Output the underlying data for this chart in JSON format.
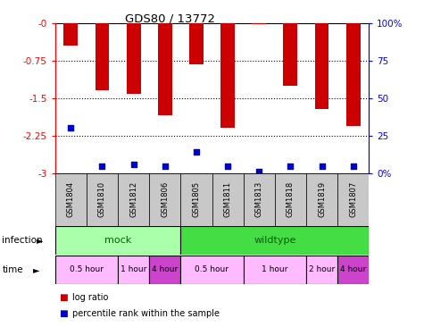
{
  "title": "GDS80 / 13772",
  "samples": [
    "GSM1804",
    "GSM1810",
    "GSM1812",
    "GSM1806",
    "GSM1805",
    "GSM1811",
    "GSM1813",
    "GSM1818",
    "GSM1819",
    "GSM1807"
  ],
  "log_ratios": [
    -0.45,
    -1.35,
    -1.42,
    -1.85,
    -0.82,
    -2.1,
    -0.02,
    -1.25,
    -1.72,
    -2.05
  ],
  "percentile_ranks": [
    30,
    5,
    6,
    5,
    14,
    5,
    1,
    5,
    5,
    5
  ],
  "ylim_min": -3.0,
  "ylim_max": 0.0,
  "yticks": [
    0.0,
    -0.75,
    -1.5,
    -2.25,
    -3.0
  ],
  "right_yticks": [
    100,
    75,
    50,
    25,
    0
  ],
  "right_ytick_labels": [
    "100%",
    "75",
    "50",
    "25",
    "0%"
  ],
  "bar_color": "#cc0000",
  "dot_color": "#0000cc",
  "infection_groups": [
    {
      "label": "mock",
      "start": 0,
      "end": 4,
      "color": "#aaffaa"
    },
    {
      "label": "wildtype",
      "start": 4,
      "end": 10,
      "color": "#44dd44"
    }
  ],
  "time_groups": [
    {
      "label": "0.5 hour",
      "start": 0,
      "end": 2,
      "color": "#ffbbff"
    },
    {
      "label": "1 hour",
      "start": 2,
      "end": 3,
      "color": "#ffbbff"
    },
    {
      "label": "4 hour",
      "start": 3,
      "end": 4,
      "color": "#cc44cc"
    },
    {
      "label": "0.5 hour",
      "start": 4,
      "end": 6,
      "color": "#ffbbff"
    },
    {
      "label": "1 hour",
      "start": 6,
      "end": 8,
      "color": "#ffbbff"
    },
    {
      "label": "2 hour",
      "start": 8,
      "end": 9,
      "color": "#ffbbff"
    },
    {
      "label": "4 hour",
      "start": 9,
      "end": 10,
      "color": "#cc44cc"
    }
  ]
}
